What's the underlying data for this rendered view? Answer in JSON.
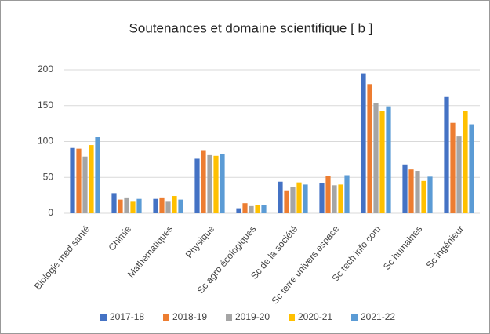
{
  "chart_data": {
    "type": "bar",
    "title": "Soutenances et domaine scientifique [ b ]",
    "categories": [
      "Biologie méd santé",
      "Chimie",
      "Mathematiques",
      "Physique",
      "Sc agro écologiques",
      "Sc de la société",
      "Sc terre univers espace",
      "Sc tech info com",
      "Sc humaines",
      "Sc ingénieur"
    ],
    "series": [
      {
        "name": "2017-18",
        "color": "#4472c4",
        "values": [
          91,
          28,
          20,
          76,
          7,
          44,
          42,
          195,
          68,
          162
        ]
      },
      {
        "name": "2018-19",
        "color": "#ed7d31",
        "values": [
          90,
          19,
          22,
          88,
          14,
          32,
          52,
          180,
          61,
          126
        ]
      },
      {
        "name": "2019-20",
        "color": "#a5a5a5",
        "values": [
          79,
          22,
          16,
          81,
          10,
          37,
          39,
          153,
          59,
          107
        ]
      },
      {
        "name": "2020-21",
        "color": "#ffc000",
        "values": [
          95,
          16,
          24,
          80,
          11,
          43,
          40,
          143,
          45,
          143
        ]
      },
      {
        "name": "2021-22",
        "color": "#5b9bd5",
        "values": [
          106,
          20,
          19,
          82,
          12,
          40,
          53,
          149,
          51,
          124
        ]
      }
    ],
    "ylim": [
      0,
      200
    ],
    "yticks": [
      0,
      50,
      100,
      150,
      200
    ],
    "grid": true,
    "legend": "bottom"
  }
}
